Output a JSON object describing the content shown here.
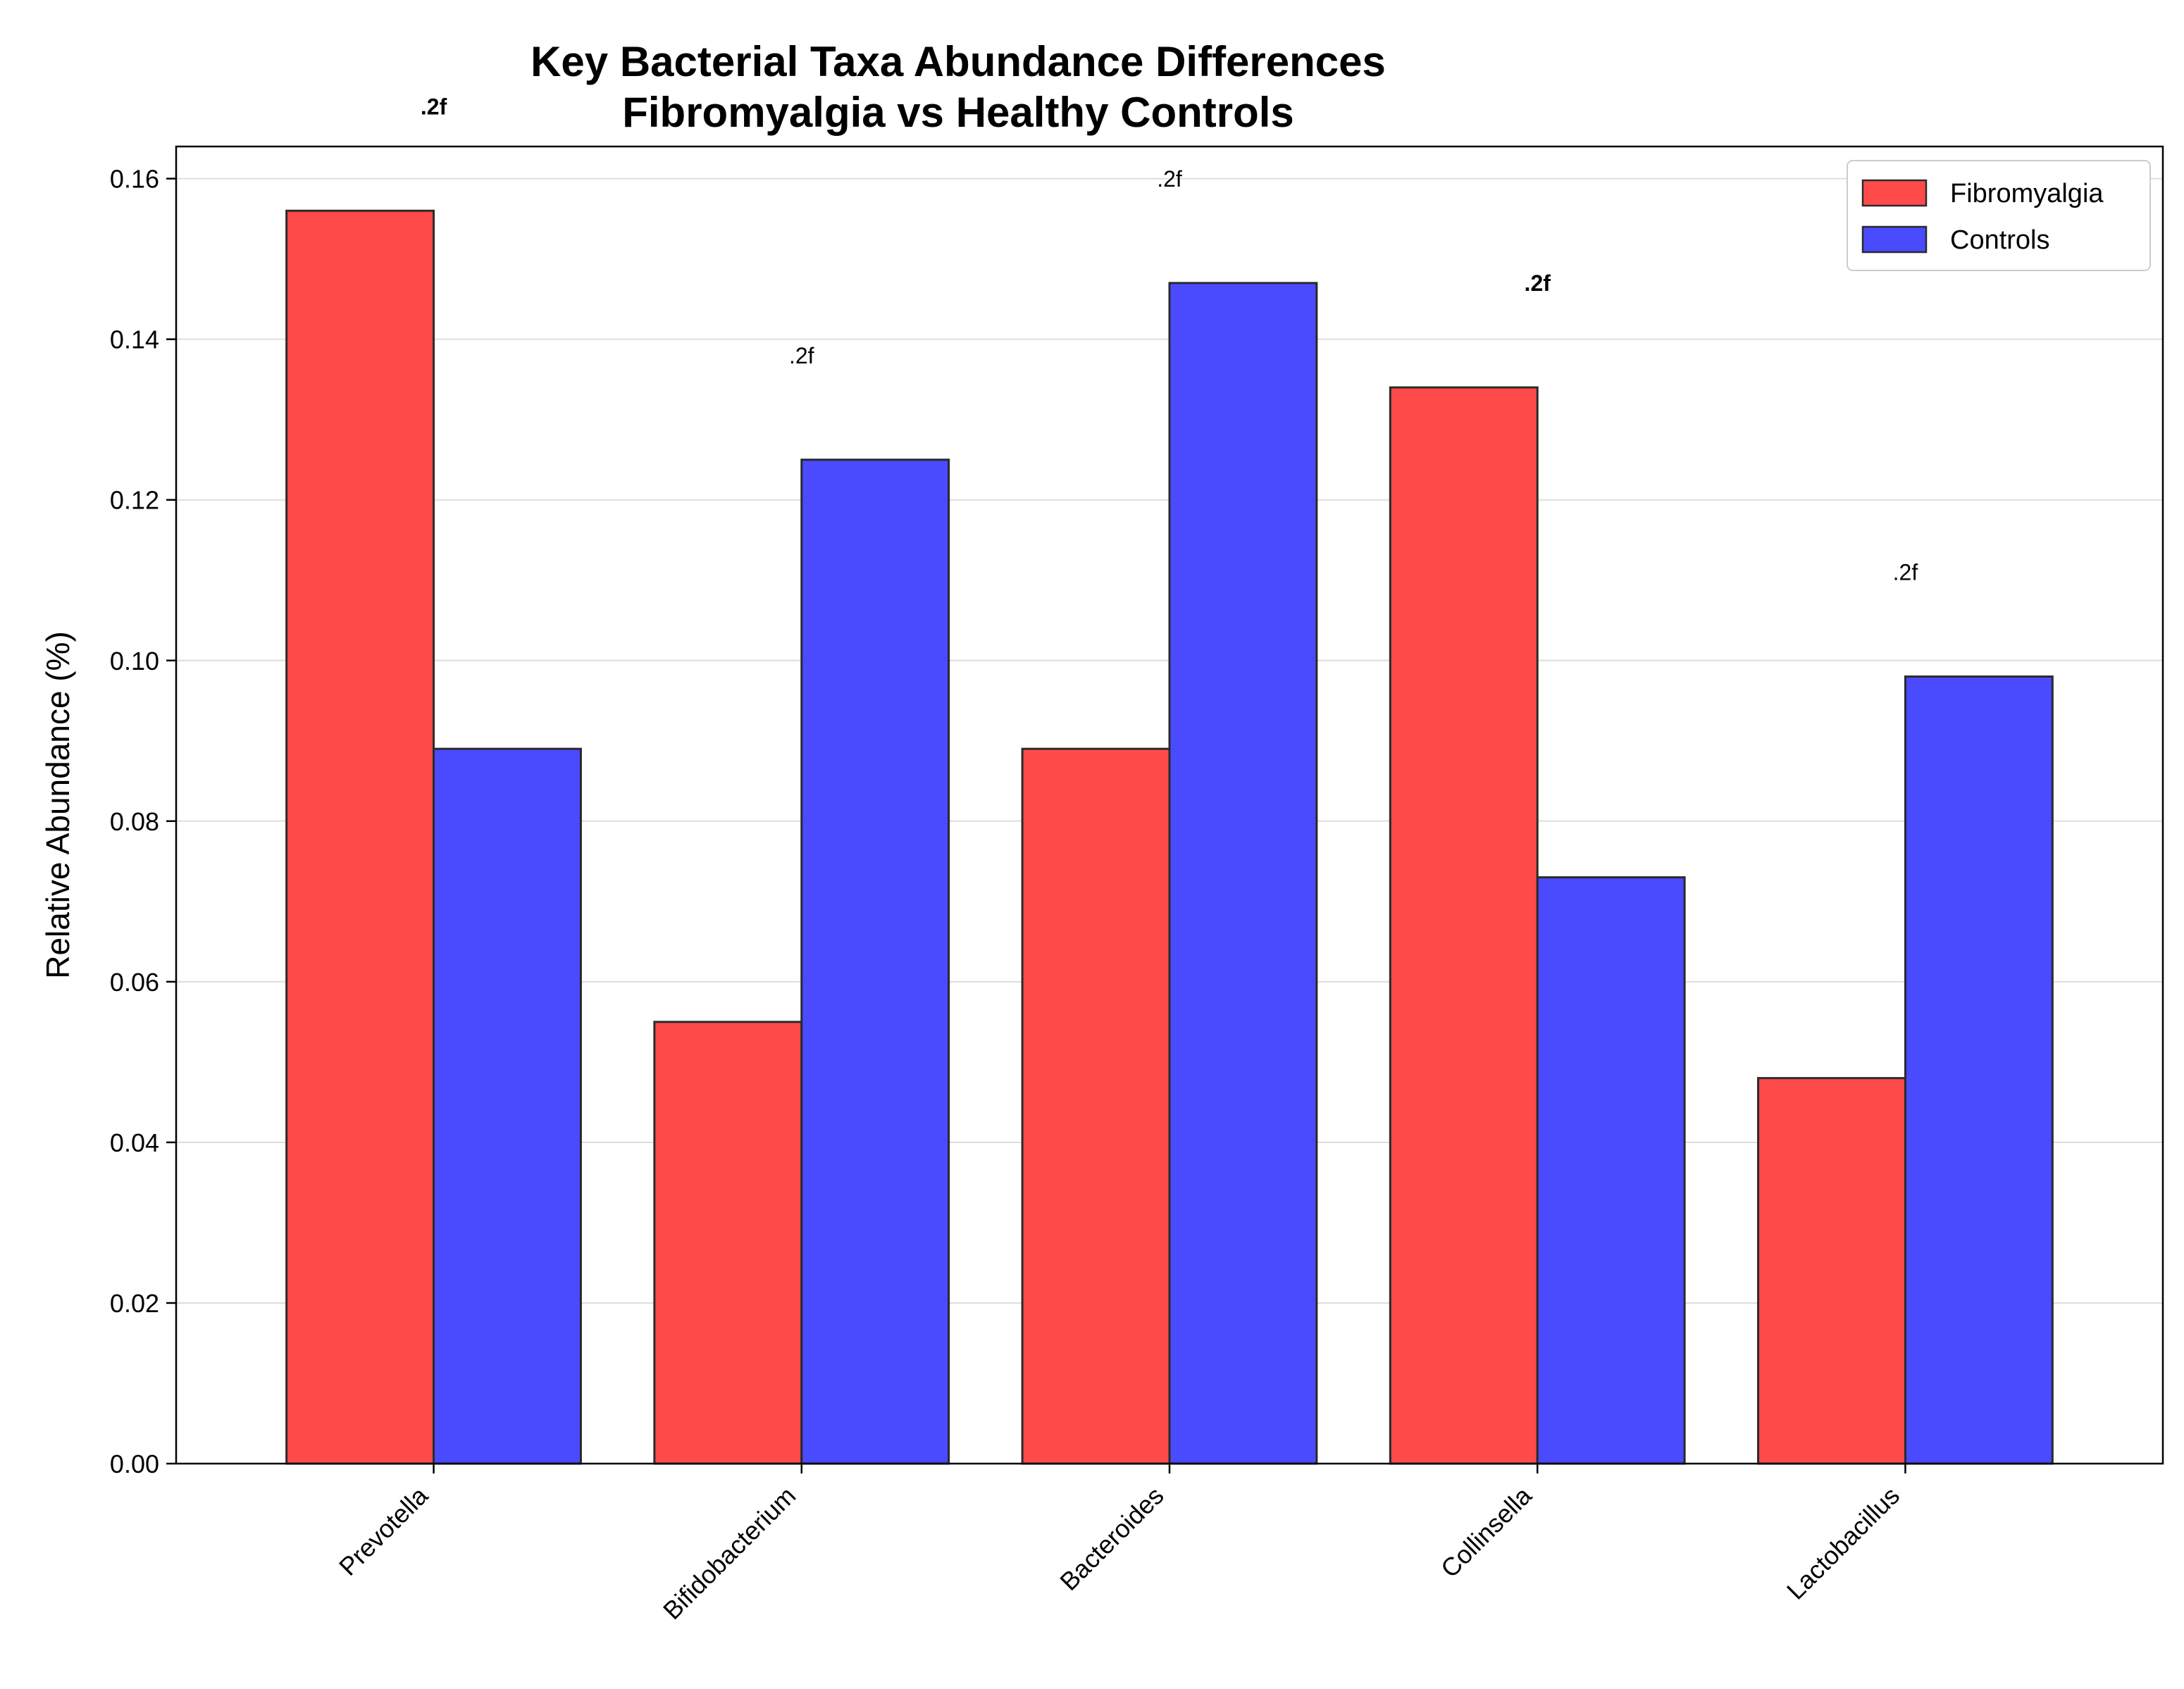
{
  "chart_data": {
    "type": "bar",
    "title_lines": [
      "Key Bacterial Taxa Abundance Differences",
      "Fibromyalgia vs Healthy Controls"
    ],
    "xlabel": "",
    "ylabel": "Relative Abundance (%)",
    "categories": [
      "Prevotella",
      "Bifidobacterium",
      "Bacteroides",
      "Collinsella",
      "Lactobacillus"
    ],
    "series": [
      {
        "name": "Fibromyalgia",
        "color": "#ff4a4a",
        "values": [
          0.156,
          0.055,
          0.089,
          0.134,
          0.048
        ]
      },
      {
        "name": "Controls",
        "color": "#4a4aff",
        "values": [
          0.089,
          0.125,
          0.147,
          0.073,
          0.098
        ]
      }
    ],
    "ylim": [
      0,
      0.164
    ],
    "yticks": [
      0.0,
      0.02,
      0.04,
      0.06,
      0.08,
      0.1,
      0.12,
      0.14,
      0.16
    ],
    "ytick_labels": [
      "0.00",
      "0.02",
      "0.04",
      "0.06",
      "0.08",
      "0.10",
      "0.12",
      "0.14",
      "0.16"
    ],
    "grid": "horizontal",
    "legend": "top-right",
    "annotations": [
      {
        "category": "Prevotella",
        "text": ".2f",
        "bold": true
      },
      {
        "category": "Bifidobacterium",
        "text": ".2f",
        "bold": false
      },
      {
        "category": "Bacteroides",
        "text": ".2f",
        "bold": false
      },
      {
        "category": "Collinsella",
        "text": ".2f",
        "bold": true
      },
      {
        "category": "Lactobacillus",
        "text": ".2f",
        "bold": false
      }
    ]
  }
}
